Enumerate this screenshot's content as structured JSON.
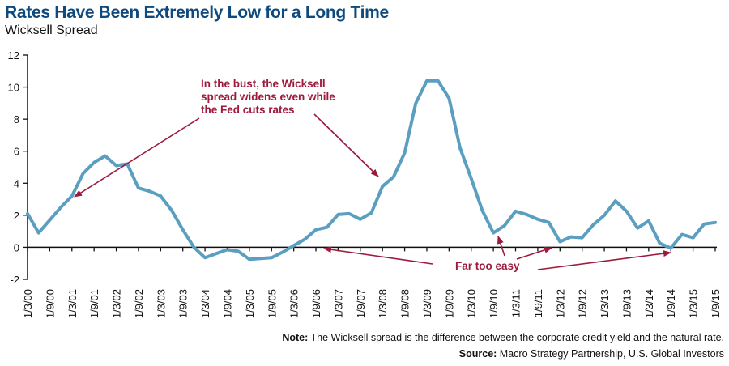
{
  "header": {
    "title": "Rates Have Been Extremely Low for a Long Time",
    "subtitle": "Wicksell Spread"
  },
  "annotations": {
    "bust_lines": [
      "In the bust, the Wicksell",
      "spread widens even while",
      "the Fed cuts rates"
    ],
    "easy": "Far too easy"
  },
  "footer": {
    "note_label": "Note:",
    "note_text": " The Wicksell spread is the difference between the corporate credit yield and the natural rate.",
    "source_label": "Source:",
    "source_text": " Macro Strategy Partnership, U.S. Global Investors"
  },
  "colors": {
    "line": "#5b9fc0",
    "annotation": "#9c1a3c",
    "title": "#0e4a7e"
  },
  "chart_data": {
    "type": "line",
    "title": "Rates Have Been Extremely Low for a Long Time",
    "subtitle": "Wicksell Spread",
    "xlabel": "",
    "ylabel": "",
    "ylim": [
      -2,
      12
    ],
    "yticks": [
      -2,
      0,
      2,
      4,
      6,
      8,
      10,
      12
    ],
    "grid": false,
    "categories": [
      "1/3/00",
      "1/9/00",
      "1/3/01",
      "1/9/01",
      "1/3/02",
      "1/9/02",
      "1/3/03",
      "1/9/03",
      "1/3/04",
      "1/9/04",
      "1/3/05",
      "1/9/05",
      "1/3/06",
      "1/9/06",
      "1/3/07",
      "1/9/07",
      "1/3/08",
      "1/9/08",
      "1/3/09",
      "1/9/09",
      "1/3/10",
      "1/9/10",
      "1/3/11",
      "1/9/11",
      "1/3/12",
      "1/9/12",
      "1/3/13",
      "1/9/13",
      "1/3/14",
      "1/9/14",
      "1/3/15",
      "1/9/15"
    ],
    "series": [
      {
        "name": "Wicksell Spread",
        "frequency": "quarterly",
        "values": [
          2.1,
          0.9,
          1.7,
          2.5,
          3.2,
          4.6,
          5.3,
          5.7,
          5.1,
          5.2,
          3.7,
          3.5,
          3.2,
          2.3,
          1.1,
          0.0,
          -0.65,
          -0.4,
          -0.15,
          -0.25,
          -0.75,
          -0.7,
          -0.65,
          -0.3,
          0.1,
          0.5,
          1.1,
          1.25,
          2.05,
          2.1,
          1.75,
          2.15,
          3.8,
          4.4,
          5.9,
          9.0,
          10.4,
          10.4,
          9.3,
          6.2,
          4.3,
          2.3,
          0.9,
          1.35,
          2.25,
          2.05,
          1.75,
          1.55,
          0.35,
          0.65,
          0.6,
          1.4,
          2.0,
          2.9,
          2.25,
          1.2,
          1.65,
          0.25,
          -0.05,
          0.8,
          0.6,
          1.45,
          1.55
        ]
      }
    ],
    "annotations": [
      {
        "text": "In the bust, the Wicksell spread widens even while the Fed cuts rates",
        "points_to": [
          "1/3/01 (~3.0)",
          "1/3/08 (~4.3)"
        ]
      },
      {
        "text": "Far too easy",
        "points_to": [
          "1/9/06 (~0)",
          "1/9/10 (~0.9)",
          "1/3/12 (~0.3)",
          "1/9/14 (~0)"
        ]
      }
    ]
  }
}
